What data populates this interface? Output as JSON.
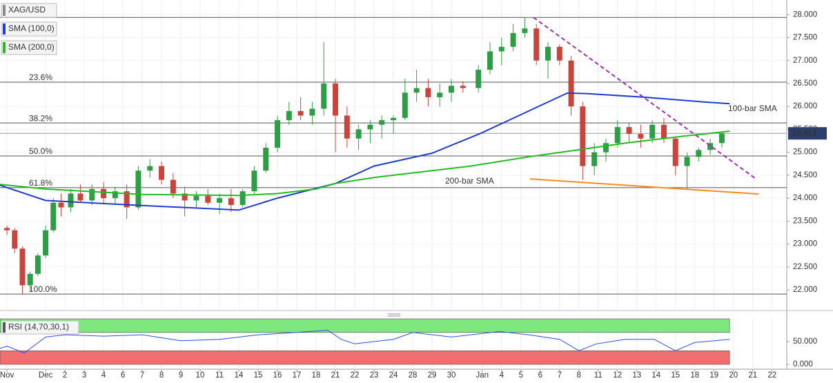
{
  "chart_data": {
    "type": "candlestick",
    "title": "XAG/USD",
    "candles": {
      "name": "XAG/USD",
      "up_color": "#2e9e46",
      "down_color": "#c9443c",
      "x": [
        -2.0,
        -1.6,
        -1.2,
        -0.8,
        -0.4,
        0.0,
        0.4,
        0.8,
        1.3,
        1.8,
        2.4,
        3.0,
        3.6,
        4.2,
        4.8,
        5.4,
        6.0,
        6.6,
        7.2,
        7.8,
        8.4,
        9.0,
        9.6,
        10.2,
        10.8,
        11.4,
        12.0,
        12.6,
        13.2,
        13.8,
        14.4,
        15.0,
        15.6,
        16.2,
        16.8,
        17.4,
        18.0,
        18.6,
        19.2,
        19.8,
        20.4,
        21.0,
        21.6,
        22.4,
        23.0,
        23.6,
        24.2,
        24.8,
        25.4,
        26.0,
        26.6,
        27.2,
        27.8,
        28.4,
        29.0,
        29.6,
        30.2,
        30.8,
        31.4,
        32.0,
        32.6,
        33.2,
        33.8,
        34.4,
        35.0
      ],
      "open": [
        23.35,
        23.3,
        22.9,
        22.1,
        22.35,
        22.75,
        23.3,
        23.9,
        23.8,
        24.1,
        23.95,
        24.2,
        24.0,
        24.15,
        23.8,
        24.6,
        24.7,
        24.4,
        24.1,
        23.95,
        24.05,
        23.9,
        24.0,
        23.85,
        24.15,
        24.6,
        25.1,
        25.7,
        25.9,
        25.8,
        25.95,
        26.5,
        25.8,
        25.3,
        25.5,
        25.6,
        25.7,
        25.75,
        26.3,
        26.4,
        26.2,
        26.3,
        26.45,
        26.4,
        26.8,
        27.2,
        27.3,
        27.6,
        27.7,
        27.0,
        27.3,
        27.0,
        26.0,
        24.7,
        25.0,
        25.2,
        25.55,
        25.4,
        25.3,
        25.6,
        25.3,
        24.7,
        24.9,
        25.05,
        25.2
      ],
      "high": [
        23.4,
        23.35,
        22.95,
        22.4,
        22.8,
        23.4,
        24.0,
        24.1,
        24.2,
        24.3,
        24.3,
        24.35,
        24.25,
        24.3,
        24.7,
        24.85,
        24.8,
        24.55,
        24.25,
        24.15,
        24.2,
        24.1,
        24.2,
        24.2,
        24.7,
        25.2,
        25.8,
        26.1,
        26.2,
        26.1,
        27.4,
        26.6,
        26.0,
        25.6,
        25.7,
        25.8,
        25.8,
        26.6,
        26.8,
        26.6,
        26.5,
        26.6,
        26.55,
        26.9,
        27.4,
        27.5,
        27.8,
        27.95,
        27.8,
        27.4,
        27.35,
        27.1,
        26.1,
        25.2,
        25.3,
        25.7,
        25.65,
        25.6,
        25.7,
        25.75,
        25.35,
        25.0,
        25.1,
        25.3,
        25.45
      ],
      "low": [
        23.2,
        22.8,
        21.9,
        21.95,
        22.3,
        22.7,
        23.25,
        23.6,
        23.7,
        23.9,
        23.85,
        23.9,
        23.85,
        23.55,
        23.75,
        24.45,
        24.3,
        24.0,
        23.6,
        23.8,
        23.85,
        23.65,
        23.7,
        23.8,
        24.1,
        24.55,
        25.0,
        25.6,
        25.7,
        25.6,
        25.8,
        25.0,
        25.1,
        25.05,
        25.2,
        25.3,
        25.4,
        25.7,
        26.1,
        26.0,
        26.0,
        26.1,
        26.3,
        26.3,
        26.7,
        26.9,
        27.2,
        27.5,
        26.9,
        26.6,
        26.9,
        25.8,
        24.4,
        24.5,
        24.8,
        25.1,
        25.2,
        25.1,
        25.2,
        25.2,
        24.5,
        24.2,
        24.8,
        24.95,
        25.1
      ],
      "close": [
        23.3,
        22.9,
        22.1,
        22.35,
        22.75,
        23.3,
        23.9,
        23.8,
        24.1,
        23.95,
        24.2,
        24.0,
        24.15,
        23.8,
        24.6,
        24.7,
        24.4,
        24.1,
        23.95,
        24.05,
        23.9,
        24.0,
        23.85,
        24.15,
        24.6,
        25.1,
        25.7,
        25.9,
        25.8,
        25.95,
        26.5,
        25.8,
        25.3,
        25.5,
        25.6,
        25.7,
        25.75,
        26.3,
        26.4,
        26.2,
        26.3,
        26.45,
        26.4,
        26.8,
        27.2,
        27.3,
        27.6,
        27.7,
        27.0,
        27.3,
        27.0,
        26.0,
        24.7,
        25.0,
        25.2,
        25.55,
        25.4,
        25.3,
        25.6,
        25.3,
        24.7,
        24.9,
        25.05,
        25.2,
        25.41
      ]
    },
    "series": [
      {
        "name": "SMA (100,0)",
        "color": "#1f3bd0",
        "x": [
          -2.36,
          0,
          4.5,
          10,
          12,
          15,
          17,
          20,
          22.5,
          25,
          27,
          28,
          31,
          34,
          35.4
        ],
        "values": [
          24.28,
          23.95,
          23.85,
          23.74,
          24.0,
          24.32,
          24.7,
          24.98,
          25.41,
          25.9,
          26.29,
          26.28,
          26.2,
          26.1,
          26.06
        ]
      },
      {
        "name": "SMA (200,0)",
        "color": "#22bb22",
        "x": [
          -2.36,
          0,
          5,
          10,
          12,
          14,
          15,
          17,
          20,
          22,
          25,
          27.5,
          30,
          33,
          35.4
        ],
        "values": [
          24.3,
          24.2,
          24.08,
          24.06,
          24.1,
          24.2,
          24.32,
          24.45,
          24.6,
          24.7,
          24.9,
          25.05,
          25.2,
          25.35,
          25.46
        ]
      }
    ],
    "annotations": [
      {
        "text": "100-bar SMA",
        "color": "#5a6fe0"
      },
      {
        "text": "200-bar SMA",
        "color": "#22aa22"
      }
    ],
    "fib_levels": [
      {
        "value": 27.94
      },
      {
        "value": 26.53,
        "label": "23.6%"
      },
      {
        "value": 25.64,
        "label": "38.2%"
      },
      {
        "value": 24.92,
        "label": "50.0%"
      },
      {
        "value": 24.23,
        "label": "61.8%"
      },
      {
        "value": 21.91,
        "label": "100.0%"
      }
    ],
    "trendlines": [
      {
        "color": "#9b2fae",
        "dashed": true,
        "x": [
          25.25,
          36.7
        ],
        "values": [
          27.94,
          24.44
        ]
      },
      {
        "color": "#f28c1b",
        "dashed": false,
        "x": [
          25.07,
          36.9
        ],
        "values": [
          24.42,
          24.09
        ]
      }
    ],
    "last_price": 25.413,
    "xlim": [
      -2.36,
      38.36
    ],
    "xticks": [
      {
        "value": -2,
        "label": "Nov"
      },
      {
        "value": 0,
        "label": "Dec"
      },
      {
        "value": 1,
        "label": "2"
      },
      {
        "value": 2,
        "label": "3"
      },
      {
        "value": 3,
        "label": "4"
      },
      {
        "value": 4,
        "label": "6"
      },
      {
        "value": 5,
        "label": "7"
      },
      {
        "value": 6,
        "label": "8"
      },
      {
        "value": 7,
        "label": "9"
      },
      {
        "value": 8,
        "label": "10"
      },
      {
        "value": 9,
        "label": "11"
      },
      {
        "value": 10,
        "label": "14"
      },
      {
        "value": 11,
        "label": "15"
      },
      {
        "value": 12,
        "label": "16"
      },
      {
        "value": 13,
        "label": "17"
      },
      {
        "value": 14,
        "label": "18"
      },
      {
        "value": 15,
        "label": "21"
      },
      {
        "value": 16,
        "label": "22"
      },
      {
        "value": 17,
        "label": "23"
      },
      {
        "value": 18,
        "label": "24"
      },
      {
        "value": 19,
        "label": "28"
      },
      {
        "value": 20,
        "label": "29"
      },
      {
        "value": 21,
        "label": "30"
      },
      {
        "value": 22.6,
        "label": "Jan"
      },
      {
        "value": 23.6,
        "label": "4"
      },
      {
        "value": 24.6,
        "label": "5"
      },
      {
        "value": 25.6,
        "label": "6"
      },
      {
        "value": 26.6,
        "label": "7"
      },
      {
        "value": 27.6,
        "label": "8"
      },
      {
        "value": 28.6,
        "label": "11"
      },
      {
        "value": 29.6,
        "label": "12"
      },
      {
        "value": 30.6,
        "label": "13"
      },
      {
        "value": 31.6,
        "label": "14"
      },
      {
        "value": 32.6,
        "label": "15"
      },
      {
        "value": 33.6,
        "label": "18"
      },
      {
        "value": 34.6,
        "label": "19"
      },
      {
        "value": 35.6,
        "label": "20"
      },
      {
        "value": 36.6,
        "label": "21"
      },
      {
        "value": 37.6,
        "label": "22"
      }
    ],
    "ylim": [
      21.55,
      28.32
    ],
    "yticks": [
      {
        "value": 28,
        "label": "28.000"
      },
      {
        "value": 27.5,
        "label": "27.500"
      },
      {
        "value": 27,
        "label": "27.000"
      },
      {
        "value": 26.5,
        "label": "26.500"
      },
      {
        "value": 26,
        "label": "26.000"
      },
      {
        "value": 25.5,
        "label": "25.500"
      },
      {
        "value": 25,
        "label": "25.000"
      },
      {
        "value": 24.5,
        "label": "24.500"
      },
      {
        "value": 24,
        "label": "24.000"
      },
      {
        "value": 23.5,
        "label": "23.500"
      },
      {
        "value": 23,
        "label": "23.000"
      },
      {
        "value": 22.5,
        "label": "22.500"
      },
      {
        "value": 22,
        "label": "22.000"
      }
    ],
    "grid": true,
    "rsi": {
      "title": "RSI (14,70,30,1)",
      "color": "#2b4ee0",
      "overbought": 70,
      "oversold": 30,
      "overbought_color": "#7ee87e",
      "oversold_color": "#f07070",
      "ylim": [
        -10.6,
        100
      ],
      "yticks": [
        {
          "value": 50,
          "label": "50.000"
        },
        {
          "value": 0,
          "label": "0.000"
        }
      ],
      "x": [
        -2.36,
        -2,
        -1.1,
        0,
        1,
        3,
        5,
        7,
        9,
        11,
        13,
        14.6,
        15.3,
        16,
        18,
        19,
        21,
        22,
        23.5,
        25,
        26.6,
        27.6,
        28.5,
        30,
        31.5,
        32.6,
        33.6,
        35.4
      ],
      "values": [
        35,
        40,
        25,
        60,
        65,
        62,
        65,
        52,
        55,
        65,
        70,
        75,
        55,
        45,
        55,
        70,
        60,
        65,
        72,
        65,
        55,
        30,
        45,
        55,
        55,
        30,
        48,
        55
      ]
    }
  }
}
